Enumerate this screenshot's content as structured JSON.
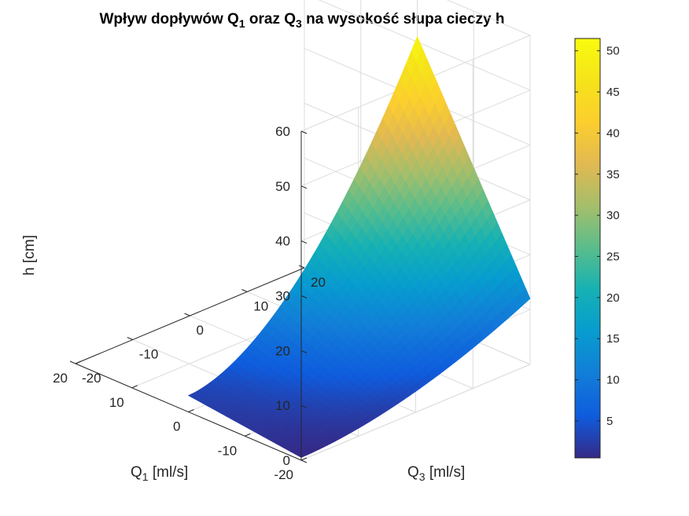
{
  "chart_data": {
    "type": "surface",
    "title": "Wpływ dopływów Q1 oraz Q3 na wysokość słupa cieczy h",
    "title_parts": {
      "prefix": "Wpływ dopływów Q",
      "sub1": "1",
      "mid": " oraz Q",
      "sub2": "3",
      "suffix": " na wysokość słupa cieczy h"
    },
    "xlabel": "Q1 [ml/s]",
    "xlabel_parts": {
      "main": "Q",
      "sub": "1",
      "unit": " [ml/s]"
    },
    "ylabel": "Q3 [ml/s]",
    "ylabel_parts": {
      "main": "Q",
      "sub": "3",
      "unit": " [ml/s]"
    },
    "zlabel": "h [cm]",
    "xlim": [
      -20,
      20
    ],
    "ylim": [
      -20,
      20
    ],
    "zlim": [
      0,
      60
    ],
    "xticks": [
      "-20",
      "-10",
      "0",
      "10",
      "20"
    ],
    "yticks": [
      "-20",
      "-10",
      "0",
      "10",
      "20"
    ],
    "zticks": [
      "0",
      "10",
      "20",
      "30",
      "40",
      "50",
      "60"
    ],
    "surface_domain": {
      "x": [
        -20,
        0
      ],
      "y": [
        -20,
        20
      ]
    },
    "surface_corners": [
      {
        "x": -20,
        "y": -20,
        "z": 0.5
      },
      {
        "x": 0,
        "y": -20,
        "z": 3
      },
      {
        "x": -20,
        "y": 20,
        "z": 12
      },
      {
        "x": 0,
        "y": 20,
        "z": 51
      }
    ],
    "colorbar": {
      "min": 0.5,
      "max": 51.5,
      "ticks": [
        "5",
        "10",
        "15",
        "20",
        "25",
        "30",
        "35",
        "40",
        "45",
        "50"
      ],
      "colormap": "parula"
    },
    "grid": true,
    "view": "3d"
  }
}
